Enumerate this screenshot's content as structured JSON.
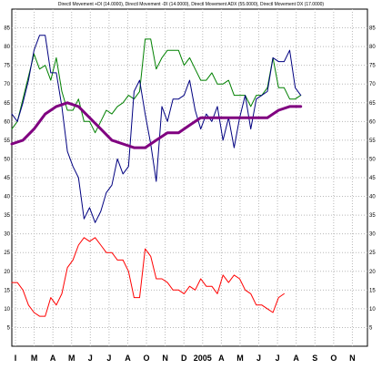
{
  "chart_data": {
    "type": "line",
    "title": "Directl Movement +DI (14.0000), Directl Movement -DI (14.0000), Directl Movement ADX (55.0000), Directl Movement DX (17.0000)",
    "xlabel": "",
    "ylabel": "",
    "ylim": [
      0,
      90
    ],
    "grid": true,
    "legend": "none",
    "x_tick_labels": [
      "I",
      "M",
      "A",
      "M",
      "J",
      "J",
      "A",
      "O",
      "N",
      "D",
      "2005",
      "A",
      "M",
      "J",
      "J",
      "A",
      "S",
      "O",
      "N"
    ],
    "y_ticks_left": [
      5,
      10,
      15,
      20,
      25,
      30,
      35,
      40,
      45,
      50,
      55,
      60,
      65,
      70,
      75,
      80,
      85
    ],
    "y_ticks_right": [
      5,
      10,
      15,
      20,
      25,
      30,
      35,
      40,
      45,
      50,
      55,
      60,
      65,
      70,
      75,
      80,
      85
    ],
    "x_range": [
      0,
      64
    ],
    "series": [
      {
        "color": "#008000",
        "width": 1,
        "values": [
          [
            0,
            58
          ],
          [
            1,
            60
          ],
          [
            2,
            66
          ],
          [
            3,
            72
          ],
          [
            4,
            78
          ],
          [
            5,
            74
          ],
          [
            6,
            75
          ],
          [
            7,
            71
          ],
          [
            8,
            77
          ],
          [
            9,
            68
          ],
          [
            10,
            63
          ],
          [
            11,
            63
          ],
          [
            12,
            66
          ],
          [
            13,
            60
          ],
          [
            14,
            60
          ],
          [
            15,
            57
          ],
          [
            16,
            60
          ],
          [
            17,
            63
          ],
          [
            18,
            62
          ],
          [
            19,
            64
          ],
          [
            20,
            65
          ],
          [
            21,
            67
          ],
          [
            22,
            66
          ],
          [
            23,
            68
          ],
          [
            24,
            82
          ],
          [
            25,
            82
          ],
          [
            26,
            74
          ],
          [
            27,
            77
          ],
          [
            28,
            79
          ],
          [
            29,
            79
          ],
          [
            30,
            79
          ],
          [
            31,
            75
          ],
          [
            32,
            77
          ],
          [
            33,
            74
          ],
          [
            34,
            71
          ],
          [
            35,
            71
          ],
          [
            36,
            73
          ],
          [
            37,
            70
          ],
          [
            38,
            70
          ],
          [
            39,
            71
          ],
          [
            40,
            67
          ],
          [
            41,
            67
          ],
          [
            42,
            67
          ],
          [
            43,
            64
          ],
          [
            44,
            67
          ],
          [
            45,
            67
          ],
          [
            46,
            69
          ],
          [
            47,
            77
          ],
          [
            48,
            69
          ],
          [
            49,
            69
          ],
          [
            50,
            66
          ],
          [
            51,
            66
          ],
          [
            52,
            67
          ]
        ]
      },
      {
        "color": "#000080",
        "width": 1,
        "values": [
          [
            0,
            62
          ],
          [
            1,
            60
          ],
          [
            2,
            65
          ],
          [
            3,
            71
          ],
          [
            4,
            79
          ],
          [
            5,
            83
          ],
          [
            6,
            83
          ],
          [
            7,
            73
          ],
          [
            8,
            73
          ],
          [
            9,
            64
          ],
          [
            10,
            52
          ],
          [
            11,
            48
          ],
          [
            12,
            45
          ],
          [
            13,
            34
          ],
          [
            14,
            37
          ],
          [
            15,
            33
          ],
          [
            16,
            36
          ],
          [
            17,
            41
          ],
          [
            18,
            43
          ],
          [
            19,
            50
          ],
          [
            20,
            46
          ],
          [
            21,
            48
          ],
          [
            22,
            68
          ],
          [
            23,
            71
          ],
          [
            24,
            62
          ],
          [
            25,
            54
          ],
          [
            26,
            44
          ],
          [
            27,
            64
          ],
          [
            28,
            60
          ],
          [
            29,
            66
          ],
          [
            30,
            66
          ],
          [
            31,
            67
          ],
          [
            32,
            71
          ],
          [
            33,
            63
          ],
          [
            34,
            58
          ],
          [
            35,
            62
          ],
          [
            36,
            60
          ],
          [
            37,
            64
          ],
          [
            38,
            55
          ],
          [
            39,
            61
          ],
          [
            40,
            53
          ],
          [
            41,
            61
          ],
          [
            42,
            67
          ],
          [
            43,
            58
          ],
          [
            44,
            66
          ],
          [
            45,
            67
          ],
          [
            46,
            68
          ],
          [
            47,
            77
          ],
          [
            48,
            76
          ],
          [
            49,
            76
          ],
          [
            50,
            79
          ],
          [
            51,
            69
          ],
          [
            52,
            67
          ]
        ]
      },
      {
        "color": "#800080",
        "width": 3,
        "values": [
          [
            0,
            54
          ],
          [
            2,
            55
          ],
          [
            4,
            58
          ],
          [
            6,
            62
          ],
          [
            8,
            64
          ],
          [
            10,
            65
          ],
          [
            12,
            64
          ],
          [
            14,
            61
          ],
          [
            16,
            58
          ],
          [
            18,
            55
          ],
          [
            20,
            54
          ],
          [
            22,
            53
          ],
          [
            24,
            53
          ],
          [
            26,
            55
          ],
          [
            28,
            57
          ],
          [
            30,
            57
          ],
          [
            32,
            59
          ],
          [
            34,
            61
          ],
          [
            36,
            61
          ],
          [
            38,
            61
          ],
          [
            40,
            61
          ],
          [
            42,
            61
          ],
          [
            44,
            61
          ],
          [
            46,
            61
          ],
          [
            48,
            63
          ],
          [
            50,
            64
          ],
          [
            52,
            64
          ]
        ]
      },
      {
        "color": "#ff0000",
        "width": 1,
        "values": [
          [
            0,
            17
          ],
          [
            1,
            17
          ],
          [
            2,
            15
          ],
          [
            3,
            11
          ],
          [
            4,
            9
          ],
          [
            5,
            8
          ],
          [
            6,
            8
          ],
          [
            7,
            13
          ],
          [
            8,
            11
          ],
          [
            9,
            14
          ],
          [
            10,
            21
          ],
          [
            11,
            23
          ],
          [
            12,
            27
          ],
          [
            13,
            29
          ],
          [
            14,
            28
          ],
          [
            15,
            29
          ],
          [
            16,
            27
          ],
          [
            17,
            25
          ],
          [
            18,
            25
          ],
          [
            19,
            23
          ],
          [
            20,
            23
          ],
          [
            21,
            20
          ],
          [
            22,
            13
          ],
          [
            23,
            13
          ],
          [
            24,
            26
          ],
          [
            25,
            24
          ],
          [
            26,
            18
          ],
          [
            27,
            18
          ],
          [
            28,
            17
          ],
          [
            29,
            15
          ],
          [
            30,
            15
          ],
          [
            31,
            14
          ],
          [
            32,
            16
          ],
          [
            33,
            15
          ],
          [
            34,
            18
          ],
          [
            35,
            16
          ],
          [
            36,
            16
          ],
          [
            37,
            14
          ],
          [
            38,
            19
          ],
          [
            39,
            17
          ],
          [
            40,
            19
          ],
          [
            41,
            18
          ],
          [
            42,
            15
          ],
          [
            43,
            14
          ],
          [
            44,
            11
          ],
          [
            45,
            11
          ],
          [
            46,
            10
          ],
          [
            47,
            9
          ],
          [
            48,
            13
          ],
          [
            49,
            14
          ]
        ]
      }
    ]
  }
}
